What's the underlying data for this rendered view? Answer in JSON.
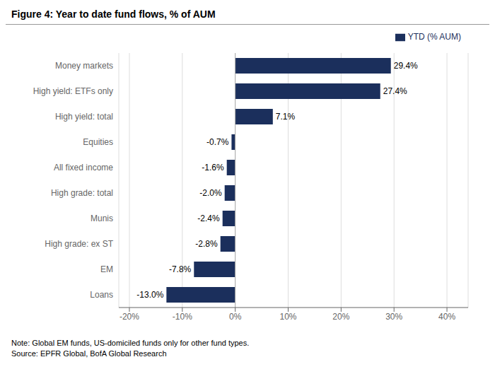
{
  "chart_data": {
    "type": "bar",
    "orientation": "horizontal",
    "title": "Figure 4: Year to date fund flows, % of AUM",
    "categories": [
      "Money markets",
      "High yield: ETFs only",
      "High yield: total",
      "Equities",
      "All fixed income",
      "High grade: total",
      "Munis",
      "High grade: ex ST",
      "EM",
      "Loans"
    ],
    "series": [
      {
        "name": "YTD (% AUM)",
        "color": "#1b2f5c",
        "values": [
          29.4,
          27.4,
          7.1,
          -0.7,
          -1.6,
          -2.0,
          -2.4,
          -2.8,
          -7.8,
          -13.0
        ],
        "value_labels": [
          "29.4%",
          "27.4%",
          "7.1%",
          "-0.7%",
          "-1.6%",
          "-2.0%",
          "-2.4%",
          "-2.8%",
          "-7.8%",
          "-13.0%"
        ]
      }
    ],
    "xlim": [
      -22,
      44
    ],
    "xticks": [
      {
        "value": -20,
        "label": "-20%"
      },
      {
        "value": -10,
        "label": "-10%"
      },
      {
        "value": 0,
        "label": "0%"
      },
      {
        "value": 10,
        "label": "10%"
      },
      {
        "value": 20,
        "label": "20%"
      },
      {
        "value": 30,
        "label": "30%"
      },
      {
        "value": 40,
        "label": "40%"
      }
    ],
    "grid": true,
    "legend": "top",
    "data_labels": true,
    "annotations": [
      "Note: Global EM funds, US-domiciled funds only for other fund types.",
      "Source: EPFR Global, BofA Global Research"
    ]
  }
}
